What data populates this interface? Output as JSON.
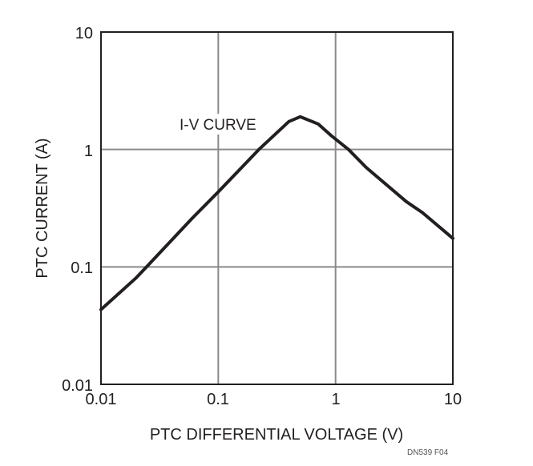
{
  "chart_data": {
    "type": "line",
    "xlabel": "PTC DIFFERENTIAL VOLTAGE (V)",
    "ylabel": "PTC CURRENT (A)",
    "xscale": "log",
    "yscale": "log",
    "xlim": [
      0.01,
      10
    ],
    "ylim": [
      0.01,
      10
    ],
    "grid": true,
    "xticks": [
      "0.01",
      "0.1",
      "1",
      "10"
    ],
    "yticks": [
      "0.01",
      "0.1",
      "1",
      "10"
    ],
    "xtick_values": [
      0.01,
      0.1,
      1,
      10
    ],
    "ytick_values": [
      0.01,
      0.1,
      1,
      10
    ],
    "annotation": "I-V CURVE",
    "footnote": "DN539 F04",
    "line_color": "#231f20",
    "grid_color": "#8a8a8a",
    "series": [
      {
        "x": [
          0.01,
          0.02,
          0.0245,
          0.06,
          0.1,
          0.222,
          0.4,
          0.5,
          0.71,
          0.92,
          1.29,
          1.83,
          4.0,
          5.5,
          10
        ],
        "y": [
          0.0433,
          0.081,
          0.1,
          0.26,
          0.435,
          1.0,
          1.73,
          1.9,
          1.65,
          1.31,
          1.0,
          0.7,
          0.36,
          0.29,
          0.175
        ]
      }
    ]
  }
}
